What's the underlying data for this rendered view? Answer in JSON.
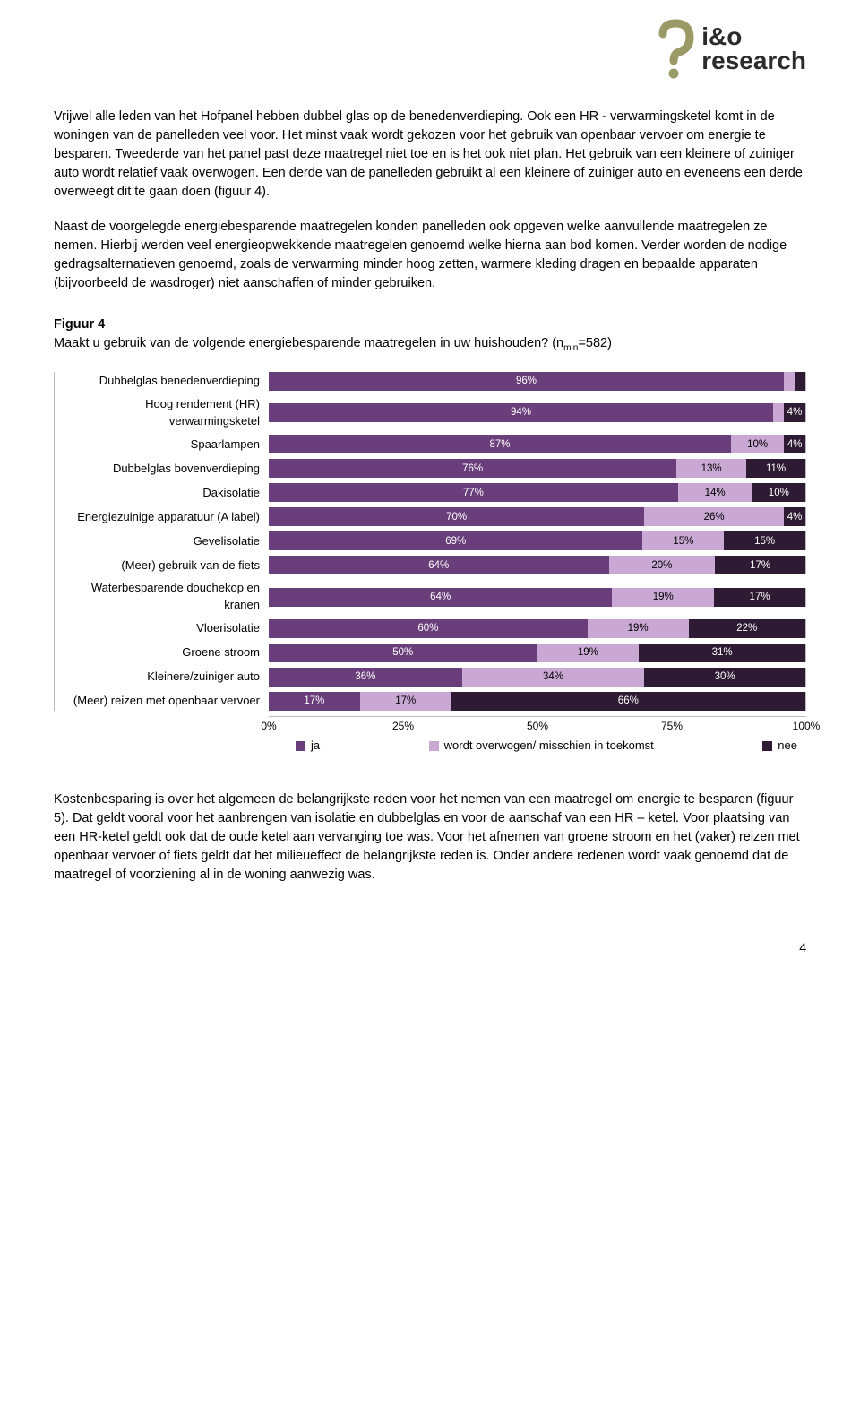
{
  "logo": {
    "line1": "i&o",
    "line2": "research",
    "icon_stroke": "#9a9a66",
    "text_color": "#2b2b2b"
  },
  "paragraph1": "Vrijwel alle leden van het Hofpanel hebben dubbel glas op de benedenverdieping. Ook een HR - verwarmingsketel komt in de woningen van de panelleden veel voor. Het minst vaak wordt gekozen voor het gebruik van openbaar vervoer om energie te besparen. Tweederde van het panel past deze maatregel niet toe en is het ook niet plan. Het gebruik van een kleinere of zuiniger auto wordt relatief vaak overwogen. Een derde van de panelleden gebruikt al een kleinere of zuiniger auto en eveneens een derde overweegt dit te gaan doen (figuur 4).",
  "paragraph2": "Naast de voorgelegde energiebesparende maatregelen konden panelleden ook opgeven welke aanvullende maatregelen ze nemen. Hierbij werden veel energieopwekkende maatregelen genoemd welke hierna aan bod komen. Verder worden de nodige gedragsalternatieven genoemd, zoals de verwarming minder hoog zetten, warmere kleding dragen en bepaalde apparaten (bijvoorbeeld de wasdroger) niet aanschaffen of minder gebruiken.",
  "figure": {
    "number": "Figuur 4",
    "question_prefix": "Maakt u gebruik van de volgende energiebesparende maatregelen in uw huishouden? (n",
    "sub": "min",
    "question_suffix": "=582)"
  },
  "chart": {
    "colors": {
      "ja": "#6a3e7a",
      "maybe": "#c9a8d4",
      "nee": "#2e1a33",
      "grid": "#eeeeee",
      "axis": "#bbbbbb"
    },
    "axis_ticks": [
      "0%",
      "25%",
      "50%",
      "75%",
      "100%"
    ],
    "legend": {
      "ja": "ja",
      "maybe": "wordt overwogen/ misschien in toekomst",
      "nee": "nee"
    },
    "rows": [
      {
        "label": "Dubbelglas benedenverdieping",
        "ja": 96,
        "maybe": 2,
        "nee": 2,
        "ja_txt": "96%",
        "maybe_txt": "",
        "nee_txt": ""
      },
      {
        "label": "Hoog rendement (HR) verwarmingsketel",
        "ja": 94,
        "maybe": 2,
        "nee": 4,
        "ja_txt": "94%",
        "maybe_txt": "",
        "nee_txt": "4%"
      },
      {
        "label": "Spaarlampen",
        "ja": 87,
        "maybe": 10,
        "nee": 4,
        "ja_txt": "87%",
        "maybe_txt": "10%",
        "nee_txt": "4%"
      },
      {
        "label": "Dubbelglas bovenverdieping",
        "ja": 76,
        "maybe": 13,
        "nee": 11,
        "ja_txt": "76%",
        "maybe_txt": "13%",
        "nee_txt": "11%"
      },
      {
        "label": "Dakisolatie",
        "ja": 77,
        "maybe": 14,
        "nee": 10,
        "ja_txt": "77%",
        "maybe_txt": "14%",
        "nee_txt": "10%"
      },
      {
        "label": "Energiezuinige apparatuur (A label)",
        "ja": 70,
        "maybe": 26,
        "nee": 4,
        "ja_txt": "70%",
        "maybe_txt": "26%",
        "nee_txt": "4%"
      },
      {
        "label": "Gevelisolatie",
        "ja": 69,
        "maybe": 15,
        "nee": 15,
        "ja_txt": "69%",
        "maybe_txt": "15%",
        "nee_txt": "15%"
      },
      {
        "label": "(Meer) gebruik van de fiets",
        "ja": 64,
        "maybe": 20,
        "nee": 17,
        "ja_txt": "64%",
        "maybe_txt": "20%",
        "nee_txt": "17%"
      },
      {
        "label": "Waterbesparende douchekop en kranen",
        "ja": 64,
        "maybe": 19,
        "nee": 17,
        "ja_txt": "64%",
        "maybe_txt": "19%",
        "nee_txt": "17%"
      },
      {
        "label": "Vloerisolatie",
        "ja": 60,
        "maybe": 19,
        "nee": 22,
        "ja_txt": "60%",
        "maybe_txt": "19%",
        "nee_txt": "22%"
      },
      {
        "label": "Groene stroom",
        "ja": 50,
        "maybe": 19,
        "nee": 31,
        "ja_txt": "50%",
        "maybe_txt": "19%",
        "nee_txt": "31%"
      },
      {
        "label": "Kleinere/zuiniger auto",
        "ja": 36,
        "maybe": 34,
        "nee": 30,
        "ja_txt": "36%",
        "maybe_txt": "34%",
        "nee_txt": "30%"
      },
      {
        "label": "(Meer) reizen met openbaar vervoer",
        "ja": 17,
        "maybe": 17,
        "nee": 66,
        "ja_txt": "17%",
        "maybe_txt": "17%",
        "nee_txt": "66%"
      }
    ]
  },
  "paragraph3": "Kostenbesparing is over het algemeen de belangrijkste reden voor het nemen van een maatregel om energie te besparen (figuur 5). Dat geldt vooral voor het aanbrengen van isolatie en dubbelglas en voor de aanschaf van een HR – ketel. Voor plaatsing van een HR-ketel geldt ook dat de oude ketel aan vervanging toe was. Voor het afnemen van groene stroom en het (vaker) reizen met openbaar vervoer of fiets geldt dat het milieueffect de belangrijkste reden is. Onder andere redenen wordt vaak genoemd dat de maatregel of voorziening al in de woning aanwezig was.",
  "page_number": "4"
}
